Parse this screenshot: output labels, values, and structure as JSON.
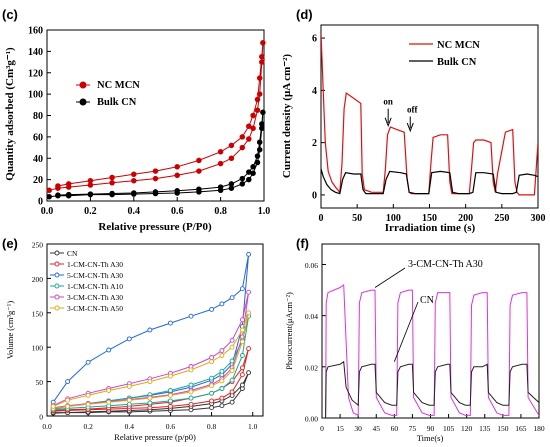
{
  "chart_data": [
    {
      "panel": "(c)",
      "type": "line",
      "xlabel": "Relative pressure (P/P0)",
      "ylabel": "Quantity adsorbed (Cm³g⁻¹)",
      "xlim": [
        0.0,
        1.0
      ],
      "ylim": [
        0,
        160
      ],
      "xticks": [
        "0.0",
        "0.2",
        "0.4",
        "0.6",
        "0.8",
        "1.0"
      ],
      "yticks": [
        "0",
        "20",
        "40",
        "60",
        "80",
        "100",
        "120",
        "140",
        "160"
      ],
      "legend_position": "left",
      "series": [
        {
          "name": "NC MCN",
          "color": "#cc0000",
          "x": [
            0.01,
            0.05,
            0.1,
            0.2,
            0.3,
            0.4,
            0.5,
            0.6,
            0.7,
            0.8,
            0.85,
            0.9,
            0.93,
            0.95,
            0.97,
            0.98,
            0.99,
            0.995,
            0.99,
            0.98,
            0.97,
            0.95,
            0.93,
            0.9,
            0.85,
            0.8,
            0.7,
            0.6,
            0.5,
            0.4,
            0.3,
            0.2,
            0.1,
            0.05
          ],
          "y": [
            10,
            12,
            13,
            15,
            17,
            19,
            21,
            24,
            28,
            35,
            40,
            50,
            58,
            68,
            85,
            100,
            130,
            148,
            135,
            115,
            95,
            80,
            70,
            60,
            52,
            46,
            38,
            32,
            28,
            25,
            22,
            19,
            16,
            14
          ]
        },
        {
          "name": "Bulk CN",
          "color": "#000000",
          "x": [
            0.01,
            0.05,
            0.1,
            0.2,
            0.3,
            0.4,
            0.5,
            0.6,
            0.7,
            0.8,
            0.85,
            0.9,
            0.93,
            0.95,
            0.97,
            0.98,
            0.99,
            0.995,
            0.99,
            0.98,
            0.97,
            0.95,
            0.93,
            0.9,
            0.85,
            0.8,
            0.7,
            0.6,
            0.5,
            0.4,
            0.3,
            0.2,
            0.1,
            0.05
          ],
          "y": [
            4,
            5,
            5,
            6,
            6,
            6.5,
            7,
            7.5,
            8.5,
            10,
            12,
            16,
            20,
            26,
            36,
            48,
            68,
            83,
            72,
            55,
            42,
            32,
            27,
            21,
            16,
            13,
            11,
            9.5,
            8.5,
            7.5,
            7,
            6.5,
            6,
            5.5
          ]
        }
      ]
    },
    {
      "panel": "(d)",
      "type": "line",
      "xlabel": "Irradiation time (s)",
      "ylabel": "Current density (μA cm⁻²)",
      "xlim": [
        0,
        300
      ],
      "ylim": [
        -0.5,
        6.5
      ],
      "xticks": [
        "0",
        "50",
        "100",
        "150",
        "200",
        "250",
        "300"
      ],
      "yticks": [
        "0",
        "2",
        "4",
        "6"
      ],
      "legend_position": "top-right",
      "annotations": [
        "on",
        "off"
      ],
      "series": [
        {
          "name": "NC MCN",
          "color": "#dd1111",
          "x": [
            0,
            3,
            6,
            10,
            15,
            20,
            26,
            29,
            32,
            35,
            45,
            55,
            57,
            60,
            70,
            80,
            86,
            89,
            92,
            96,
            105,
            115,
            119,
            122,
            125,
            135,
            145,
            149,
            152,
            155,
            165,
            175,
            178,
            181,
            184,
            195,
            205,
            208,
            211,
            214,
            225,
            235,
            238,
            241,
            244,
            255,
            265,
            268,
            271,
            274,
            285,
            295,
            300
          ],
          "y": [
            6.2,
            4.0,
            2.0,
            0.9,
            0.5,
            0.3,
            0.1,
            1.2,
            3.3,
            3.9,
            3.7,
            3.5,
            0.8,
            0.2,
            0.1,
            0.1,
            0.1,
            1.0,
            2.3,
            2.6,
            2.5,
            2.4,
            0.6,
            0.1,
            0.05,
            0.05,
            0.05,
            0.05,
            1.2,
            2.2,
            2.3,
            2.3,
            0.5,
            0.05,
            0.05,
            0.05,
            0.05,
            1.0,
            2.0,
            2.1,
            2.1,
            2.0,
            0.5,
            0.1,
            0.8,
            2.4,
            2.5,
            0.5,
            0.1,
            0.0,
            0.0,
            0.0,
            2.0
          ]
        },
        {
          "name": "Bulk CN",
          "color": "#000000",
          "x": [
            0,
            3,
            8,
            14,
            20,
            26,
            30,
            34,
            45,
            55,
            58,
            62,
            70,
            80,
            86,
            90,
            95,
            110,
            118,
            122,
            130,
            145,
            149,
            153,
            165,
            178,
            182,
            190,
            205,
            210,
            214,
            225,
            238,
            242,
            250,
            265,
            270,
            274,
            285,
            295,
            300
          ],
          "y": [
            1.0,
            0.7,
            0.4,
            0.2,
            0.1,
            0.05,
            0.6,
            0.85,
            0.8,
            0.8,
            0.2,
            0.05,
            0.05,
            0.05,
            0.05,
            0.6,
            0.9,
            0.85,
            0.8,
            0.1,
            0.05,
            0.05,
            0.05,
            0.85,
            0.9,
            0.85,
            0.1,
            0.05,
            0.05,
            0.1,
            0.85,
            0.85,
            0.8,
            0.1,
            0.05,
            0.05,
            0.1,
            0.75,
            0.8,
            0.75,
            0.7
          ]
        }
      ]
    },
    {
      "panel": "(e)",
      "type": "line",
      "xlabel": "Relative pressure (p/p0)",
      "ylabel": "Volume (cm³g⁻¹)",
      "xlim": [
        0.0,
        1.05
      ],
      "ylim": [
        0,
        250
      ],
      "xticks": [
        "0.0",
        "0.2",
        "0.4",
        "0.6",
        "0.8",
        "1.0"
      ],
      "yticks": [
        "0",
        "50",
        "100",
        "150",
        "200",
        "250"
      ],
      "legend_position": "top-left",
      "series": [
        {
          "name": "CN",
          "color": "#333333",
          "x": [
            0.03,
            0.1,
            0.2,
            0.3,
            0.4,
            0.5,
            0.6,
            0.7,
            0.8,
            0.85,
            0.9,
            0.95,
            0.98,
            0.95,
            0.9,
            0.85,
            0.8,
            0.7,
            0.6,
            0.5,
            0.4,
            0.3,
            0.2,
            0.1,
            0.03
          ],
          "y": [
            4,
            5,
            5,
            6,
            6,
            7,
            8,
            9,
            12,
            15,
            20,
            40,
            63,
            45,
            30,
            22,
            18,
            14,
            11,
            9,
            8,
            7,
            6,
            5,
            5
          ]
        },
        {
          "name": "1-CM-CN-Th A30",
          "color": "#dd2222",
          "x": [
            0.03,
            0.1,
            0.2,
            0.3,
            0.4,
            0.5,
            0.6,
            0.7,
            0.8,
            0.85,
            0.9,
            0.95,
            0.98,
            0.95,
            0.9,
            0.85,
            0.8,
            0.7,
            0.6,
            0.5,
            0.4,
            0.3,
            0.2,
            0.1,
            0.03
          ],
          "y": [
            7,
            8,
            9,
            10,
            11,
            12,
            14,
            17,
            22,
            26,
            35,
            60,
            98,
            70,
            50,
            40,
            33,
            26,
            20,
            17,
            14,
            12,
            10,
            9,
            8
          ]
        },
        {
          "name": "5-CM-CN-Th A30",
          "color": "#2266dd",
          "x": [
            0.03,
            0.1,
            0.2,
            0.3,
            0.4,
            0.5,
            0.6,
            0.7,
            0.8,
            0.85,
            0.9,
            0.95,
            0.98,
            0.95,
            0.9,
            0.85,
            0.8,
            0.7,
            0.6,
            0.5,
            0.4,
            0.3,
            0.2,
            0.1,
            0.03
          ],
          "y": [
            10,
            14,
            18,
            22,
            26,
            30,
            35,
            42,
            52,
            60,
            75,
            130,
            235,
            185,
            172,
            163,
            155,
            145,
            135,
            125,
            112,
            96,
            78,
            50,
            20
          ]
        },
        {
          "name": "1-CM-CN-Th A10",
          "color": "#11aa99",
          "x": [
            0.03,
            0.1,
            0.2,
            0.3,
            0.4,
            0.5,
            0.6,
            0.7,
            0.8,
            0.85,
            0.9,
            0.95,
            0.98,
            0.95,
            0.9,
            0.85,
            0.8,
            0.7,
            0.6,
            0.5,
            0.4,
            0.3,
            0.2,
            0.1,
            0.03
          ],
          "y": [
            9,
            11,
            13,
            15,
            17,
            19,
            22,
            26,
            33,
            40,
            52,
            88,
            145,
            110,
            80,
            65,
            55,
            45,
            37,
            31,
            26,
            22,
            18,
            14,
            11
          ]
        },
        {
          "name": "3-CM-CN-Th A30",
          "color": "#cc44cc",
          "x": [
            0.03,
            0.1,
            0.2,
            0.3,
            0.4,
            0.5,
            0.6,
            0.7,
            0.8,
            0.85,
            0.9,
            0.95,
            0.98,
            0.95,
            0.9,
            0.85,
            0.8,
            0.7,
            0.6,
            0.5,
            0.4,
            0.3,
            0.2,
            0.1,
            0.03
          ],
          "y": [
            12,
            15,
            18,
            21,
            24,
            27,
            31,
            37,
            46,
            54,
            70,
            115,
            180,
            140,
            110,
            95,
            85,
            72,
            62,
            54,
            47,
            40,
            33,
            25,
            15
          ]
        },
        {
          "name": "3-CM-CN-Th A50",
          "color": "#ddaa11",
          "x": [
            0.03,
            0.1,
            0.2,
            0.3,
            0.4,
            0.5,
            0.6,
            0.7,
            0.8,
            0.85,
            0.9,
            0.95,
            0.98,
            0.95,
            0.9,
            0.85,
            0.8,
            0.7,
            0.6,
            0.5,
            0.4,
            0.3,
            0.2,
            0.1,
            0.03
          ],
          "y": [
            11,
            14,
            17,
            20,
            23,
            26,
            30,
            35,
            44,
            51,
            66,
            108,
            150,
            125,
            100,
            88,
            79,
            67,
            58,
            50,
            43,
            37,
            30,
            23,
            14
          ]
        }
      ]
    },
    {
      "panel": "(f)",
      "type": "line",
      "xlabel": "Time(s)",
      "ylabel": "Photocurrent(μAcm⁻²)",
      "xlim": [
        0,
        180
      ],
      "ylim": [
        0,
        0.068
      ],
      "xticks": [
        "0",
        "15",
        "30",
        "45",
        "60",
        "75",
        "90",
        "105",
        "120",
        "135",
        "150",
        "165",
        "180"
      ],
      "yticks": [
        "0.00",
        "0.02",
        "0.04",
        "0.06"
      ],
      "annotations": [
        "3-CM-CN-Th A30",
        "CN"
      ],
      "series": [
        {
          "name": "3-CM-CN-Th A30",
          "color": "#dd33dd",
          "x": [
            0,
            3,
            3.5,
            5,
            15,
            18,
            22,
            26,
            30,
            31,
            33,
            41,
            44,
            45,
            52,
            58,
            62,
            63,
            65,
            72,
            75,
            76,
            83,
            89,
            93,
            94,
            96,
            104,
            106,
            107,
            114,
            119,
            123,
            124,
            126,
            133,
            137,
            138,
            145,
            150,
            155,
            156,
            158,
            166,
            170,
            171,
            180
          ],
          "y": [
            0.0,
            0.0,
            0.045,
            0.049,
            0.051,
            0.052,
            0.008,
            0.002,
            0.001,
            0.045,
            0.049,
            0.05,
            0.05,
            0.008,
            0.002,
            0.001,
            0.001,
            0.045,
            0.049,
            0.05,
            0.05,
            0.008,
            0.002,
            0.001,
            0.001,
            0.045,
            0.049,
            0.049,
            0.049,
            0.008,
            0.002,
            0.001,
            0.001,
            0.044,
            0.048,
            0.049,
            0.049,
            0.008,
            0.002,
            0.001,
            0.001,
            0.044,
            0.048,
            0.049,
            0.049,
            0.008,
            0.001
          ]
        },
        {
          "name": "CN",
          "color": "#222222",
          "x": [
            0,
            3,
            3.5,
            5,
            15,
            18,
            20,
            25,
            30,
            31,
            33,
            41,
            44,
            45,
            52,
            58,
            62,
            63,
            65,
            72,
            75,
            76,
            83,
            89,
            93,
            94,
            96,
            104,
            106,
            107,
            114,
            119,
            123,
            124,
            126,
            133,
            137,
            138,
            145,
            150,
            155,
            156,
            158,
            166,
            170,
            171,
            180
          ],
          "y": [
            0.0,
            0.0,
            0.018,
            0.02,
            0.021,
            0.022,
            0.012,
            0.007,
            0.005,
            0.018,
            0.02,
            0.021,
            0.021,
            0.01,
            0.006,
            0.005,
            0.005,
            0.018,
            0.02,
            0.021,
            0.021,
            0.01,
            0.006,
            0.005,
            0.005,
            0.018,
            0.02,
            0.021,
            0.021,
            0.01,
            0.006,
            0.005,
            0.005,
            0.018,
            0.02,
            0.02,
            0.021,
            0.01,
            0.006,
            0.005,
            0.005,
            0.018,
            0.02,
            0.021,
            0.021,
            0.01,
            0.006
          ]
        }
      ]
    }
  ]
}
